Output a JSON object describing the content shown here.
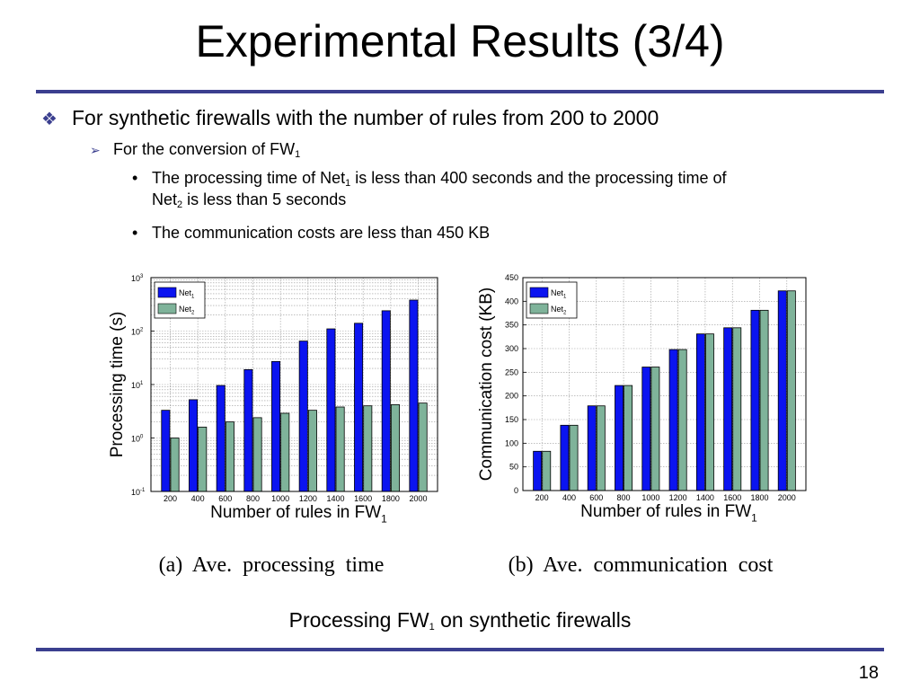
{
  "slide": {
    "title": "Experimental Results  (3/4)",
    "bullet1": "For synthetic firewalls with the number of rules from 200 to 2000",
    "bullet2": {
      "text": "For the conversion of FW",
      "sub": "1"
    },
    "bullet3": {
      "a": "The processing time of Net",
      "sub1": "1",
      "b": " is less than 400 seconds and the processing time of",
      "c": "Net",
      "sub2": "2",
      "d": " is less than 5 seconds"
    },
    "bullet4": "The communication costs are less than 450 KB",
    "caption": {
      "a": "Processing FW",
      "sub": "1",
      "b": " on synthetic firewalls"
    },
    "page_number": "18"
  },
  "colors": {
    "net1": "#0b14f0",
    "net2": "#7fb39a",
    "rule": "#3b3f8f",
    "grid": "#9a9a9a"
  },
  "chart_data": [
    {
      "type": "bar",
      "subtitle": "(a)  Ave.  processing  time",
      "xlabel": "Number of rules in FW",
      "xlabel_sub": "1",
      "ylabel": "Processing time (s)",
      "yscale": "log",
      "ylim": [
        0.1,
        1000
      ],
      "yticks": [
        "10",
        "10",
        "10",
        "10",
        "10"
      ],
      "yticks_exp": [
        "-1",
        "0",
        "1",
        "2",
        "3"
      ],
      "grid": true,
      "legend": "top-left",
      "categories": [
        "200",
        "400",
        "600",
        "800",
        "1000",
        "1200",
        "1400",
        "1600",
        "1800",
        "2000"
      ],
      "series": [
        {
          "name": "Net",
          "name_sub": "1",
          "values": [
            3.3,
            5.2,
            9.6,
            19,
            27,
            65,
            110,
            140,
            240,
            380
          ]
        },
        {
          "name": "Net",
          "name_sub": "2",
          "values": [
            1.0,
            1.6,
            2.0,
            2.4,
            2.9,
            3.3,
            3.8,
            4.0,
            4.2,
            4.5
          ]
        }
      ]
    },
    {
      "type": "bar",
      "subtitle": "(b)  Ave.  communication  cost",
      "xlabel": "Number of rules in FW",
      "xlabel_sub": "1",
      "ylabel": "Communication cost (KB)",
      "ylim": [
        0,
        450
      ],
      "yticks": [
        "0",
        "50",
        "100",
        "150",
        "200",
        "250",
        "300",
        "350",
        "400",
        "450"
      ],
      "grid": true,
      "legend": "top-left",
      "categories": [
        "200",
        "400",
        "600",
        "800",
        "1000",
        "1200",
        "1400",
        "1600",
        "1800",
        "2000"
      ],
      "series": [
        {
          "name": "Net",
          "name_sub": "1",
          "values": [
            83,
            138,
            179,
            222,
            261,
            298,
            331,
            344,
            381,
            422
          ]
        },
        {
          "name": "Net",
          "name_sub": "2",
          "values": [
            83,
            138,
            179,
            222,
            261,
            298,
            331,
            344,
            381,
            422
          ]
        }
      ]
    }
  ]
}
